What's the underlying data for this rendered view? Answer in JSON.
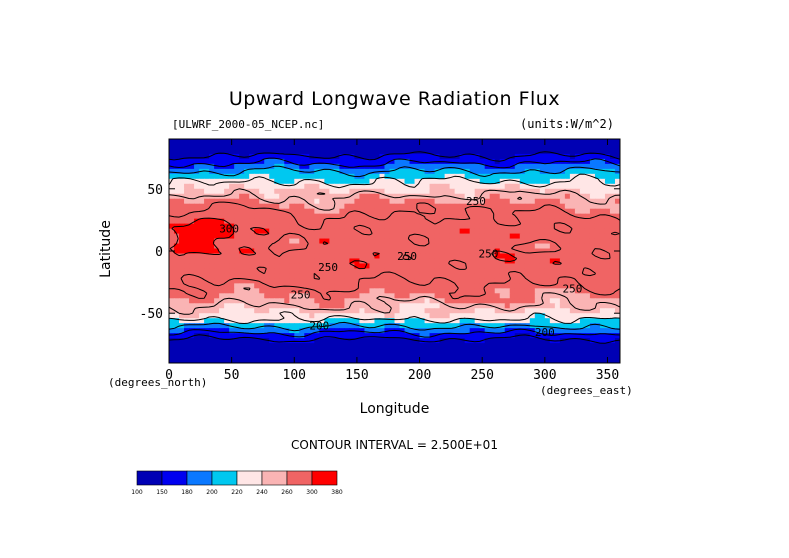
{
  "chart_data": {
    "type": "heatmap",
    "title": "Upward Longwave Radiation Flux",
    "source_label": "[ULWRF_2000-05_NCEP.nc]",
    "units_label": "(units:W/m^2)",
    "xlabel": "Longitude",
    "ylabel": "Latitude",
    "x_unit_label": "(degrees_east)",
    "y_unit_label": "(degrees_north)",
    "xlim": [
      0,
      360
    ],
    "ylim": [
      -90,
      90
    ],
    "x_ticks": [
      0,
      50,
      100,
      150,
      200,
      250,
      300,
      350
    ],
    "y_ticks": [
      -50,
      0,
      50
    ],
    "contour_interval_text": "CONTOUR INTERVAL = 2.500E+01",
    "colorbar": {
      "levels": [
        "100",
        "150",
        "180",
        "200",
        "220",
        "240",
        "260",
        "300",
        "380"
      ],
      "colors": [
        "#0000b4",
        "#0000f0",
        "#0a78ff",
        "#00c8f0",
        "#ffe6e6",
        "#fab4b4",
        "#f06464",
        "#ff0000"
      ]
    },
    "contour_labels": [
      {
        "text": "250",
        "lon": 245,
        "lat": 40
      },
      {
        "text": "300",
        "lon": 48,
        "lat": 18
      },
      {
        "text": "250",
        "lon": 190,
        "lat": -4
      },
      {
        "text": "250",
        "lon": 255,
        "lat": -2
      },
      {
        "text": "250",
        "lon": 127,
        "lat": -13
      },
      {
        "text": "250",
        "lon": 105,
        "lat": -35
      },
      {
        "text": "250",
        "lon": 322,
        "lat": -30
      },
      {
        "text": "200",
        "lon": 120,
        "lat": -60
      },
      {
        "text": "200",
        "lon": 300,
        "lat": -65
      }
    ]
  }
}
